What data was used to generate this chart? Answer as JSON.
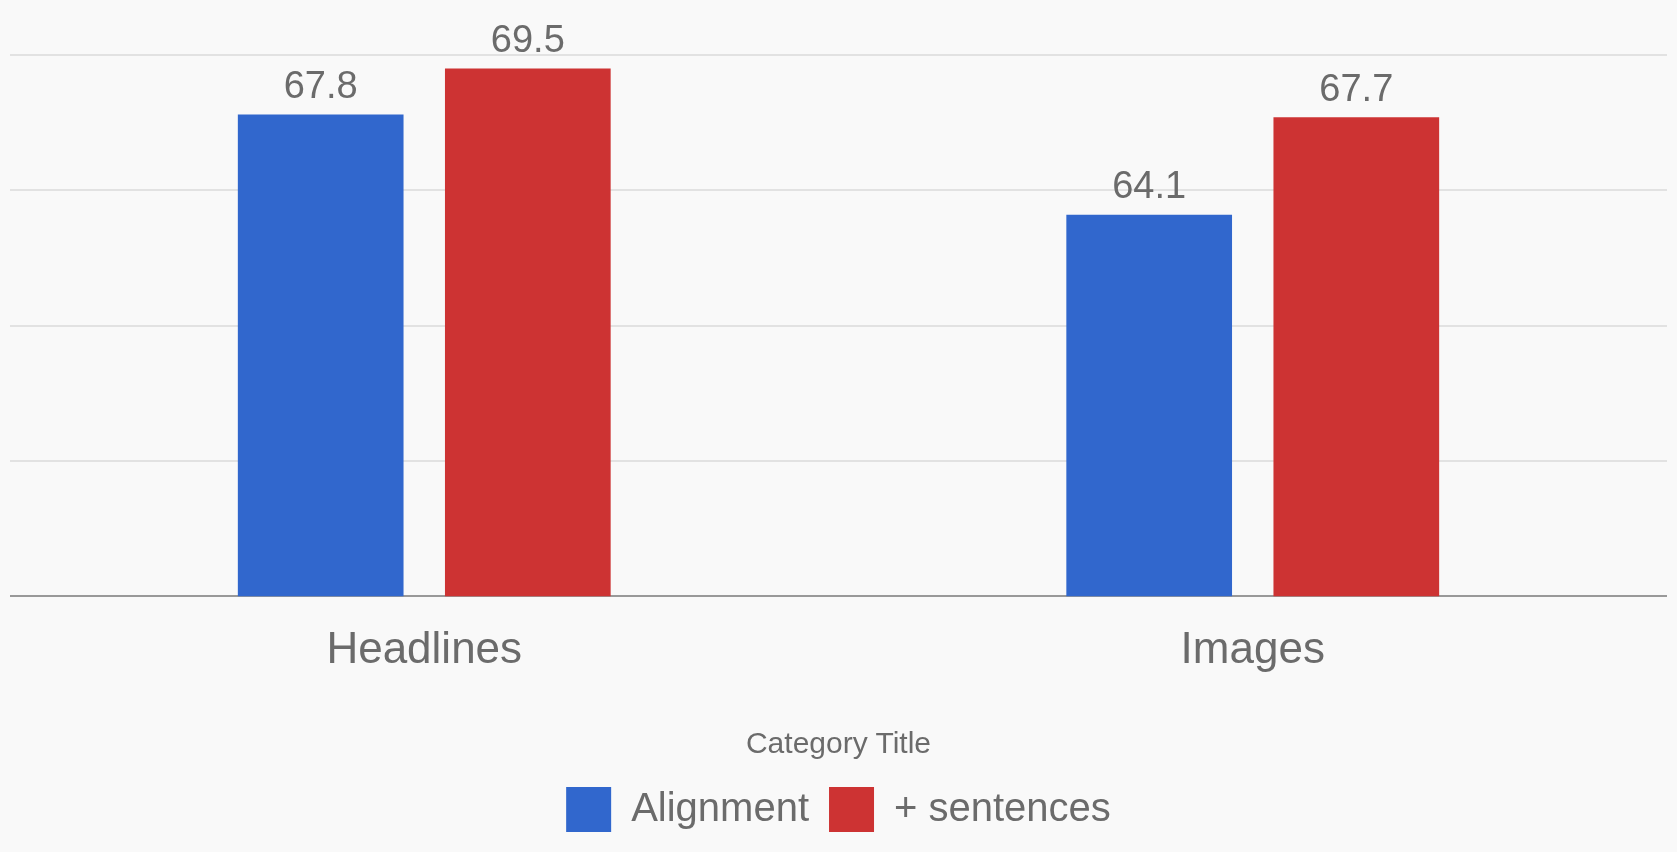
{
  "chart_data": {
    "type": "bar",
    "xlabel": "Category Title",
    "categories": [
      "Headlines",
      "Images"
    ],
    "series": [
      {
        "name": "Alignment",
        "color": "#3167cd",
        "values": [
          67.8,
          64.1
        ]
      },
      {
        "name": "+ sentences",
        "color": "#cd3333",
        "values": [
          69.5,
          67.7
        ]
      }
    ],
    "ylim": [
      50,
      70
    ],
    "yticks": [
      {
        "value": 50,
        "label": null
      },
      {
        "value": 55,
        "label": null
      },
      {
        "value": 60,
        "label": null
      },
      {
        "value": 65,
        "label": null
      },
      {
        "value": 70,
        "label": null
      }
    ],
    "tick_labels": "x",
    "grid": "y",
    "data_labels": true,
    "legend": "bottom"
  }
}
